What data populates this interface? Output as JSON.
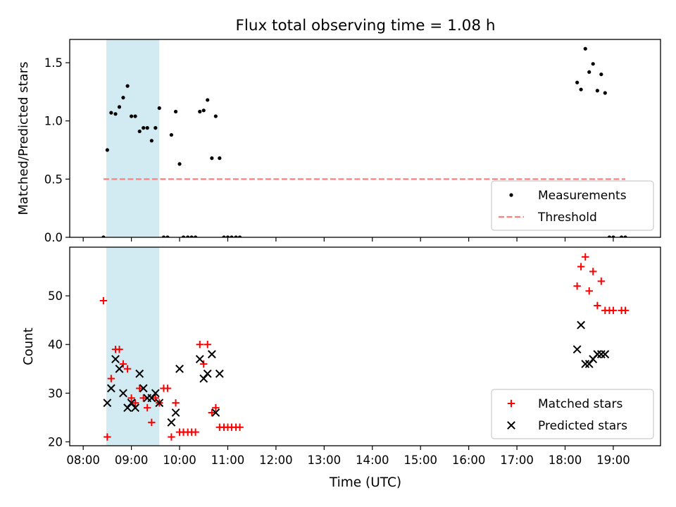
{
  "chart_data": {
    "title": "Flux total observing time = 1.08 h",
    "xlabel": "Time (UTC)",
    "x_ticks": [
      "08:00",
      "09:00",
      "10:00",
      "11:00",
      "12:00",
      "13:00",
      "14:00",
      "15:00",
      "16:00",
      "17:00",
      "18:00",
      "19:00"
    ],
    "x_range_hours": [
      7.72,
      19.98
    ],
    "shaded_interval_hours": [
      8.48,
      9.58
    ],
    "shade_color": "#add8e6",
    "panels": [
      {
        "type": "scatter",
        "ylabel": "Matched/Predicted stars",
        "ylim": [
          0,
          1.7
        ],
        "y_ticks": [
          "0.0",
          "0.5",
          "1.0",
          "1.5"
        ],
        "y_tick_values": [
          0,
          0.5,
          1.0,
          1.5
        ],
        "legend_position": "lower right",
        "threshold": {
          "name": "Threshold",
          "value": 0.5,
          "x_start": 8.42,
          "x_end": 19.25,
          "color": "#ff7f7f",
          "style": "dashed"
        },
        "series": [
          {
            "name": "Measurements",
            "marker": "dot",
            "color": "#000000",
            "points": [
              [
                8.42,
                0.0
              ],
              [
                8.5,
                0.75
              ],
              [
                8.58,
                1.07
              ],
              [
                8.67,
                1.06
              ],
              [
                8.75,
                1.12
              ],
              [
                8.83,
                1.2
              ],
              [
                8.92,
                1.3
              ],
              [
                9.0,
                1.04
              ],
              [
                9.08,
                1.04
              ],
              [
                9.17,
                0.91
              ],
              [
                9.25,
                0.94
              ],
              [
                9.33,
                0.94
              ],
              [
                9.42,
                0.83
              ],
              [
                9.5,
                0.94
              ],
              [
                9.58,
                1.11
              ],
              [
                9.67,
                0.0
              ],
              [
                9.75,
                0.0
              ],
              [
                9.83,
                0.88
              ],
              [
                9.92,
                1.08
              ],
              [
                10.0,
                0.63
              ],
              [
                10.08,
                0.0
              ],
              [
                10.17,
                0.0
              ],
              [
                10.25,
                0.0
              ],
              [
                10.33,
                0.0
              ],
              [
                10.42,
                1.08
              ],
              [
                10.5,
                1.09
              ],
              [
                10.58,
                1.18
              ],
              [
                10.67,
                0.68
              ],
              [
                10.75,
                1.04
              ],
              [
                10.83,
                0.68
              ],
              [
                10.92,
                0.0
              ],
              [
                11.0,
                0.0
              ],
              [
                11.08,
                0.0
              ],
              [
                11.17,
                0.0
              ],
              [
                11.25,
                0.0
              ],
              [
                18.25,
                1.33
              ],
              [
                18.33,
                1.27
              ],
              [
                18.42,
                1.62
              ],
              [
                18.5,
                1.42
              ],
              [
                18.58,
                1.49
              ],
              [
                18.67,
                1.26
              ],
              [
                18.75,
                1.4
              ],
              [
                18.83,
                1.24
              ],
              [
                18.92,
                0.0
              ],
              [
                19.0,
                0.0
              ],
              [
                19.17,
                0.0
              ],
              [
                19.25,
                0.0
              ]
            ]
          }
        ],
        "legend": [
          "Measurements",
          "Threshold"
        ]
      },
      {
        "type": "scatter",
        "ylabel": "Count",
        "ylim": [
          19.2,
          60
        ],
        "y_ticks": [
          "20",
          "30",
          "40",
          "50"
        ],
        "y_tick_values": [
          20,
          30,
          40,
          50
        ],
        "legend_position": "lower right",
        "series": [
          {
            "name": "Matched stars",
            "marker": "plus",
            "color": "#ff0000",
            "points": [
              [
                8.42,
                49
              ],
              [
                8.5,
                21
              ],
              [
                8.58,
                33
              ],
              [
                8.67,
                39
              ],
              [
                8.75,
                39
              ],
              [
                8.83,
                36
              ],
              [
                8.92,
                35
              ],
              [
                9.0,
                29
              ],
              [
                9.08,
                28
              ],
              [
                9.17,
                31
              ],
              [
                9.25,
                29
              ],
              [
                9.33,
                27
              ],
              [
                9.42,
                24
              ],
              [
                9.5,
                29
              ],
              [
                9.58,
                28
              ],
              [
                9.67,
                31
              ],
              [
                9.75,
                31
              ],
              [
                9.83,
                21
              ],
              [
                9.92,
                28
              ],
              [
                10.0,
                22
              ],
              [
                10.08,
                22
              ],
              [
                10.17,
                22
              ],
              [
                10.25,
                22
              ],
              [
                10.33,
                22
              ],
              [
                10.42,
                40
              ],
              [
                10.5,
                36
              ],
              [
                10.58,
                40
              ],
              [
                10.67,
                26
              ],
              [
                10.75,
                27
              ],
              [
                10.83,
                23
              ],
              [
                10.92,
                23
              ],
              [
                11.0,
                23
              ],
              [
                11.08,
                23
              ],
              [
                11.17,
                23
              ],
              [
                11.25,
                23
              ],
              [
                18.25,
                52
              ],
              [
                18.33,
                56
              ],
              [
                18.42,
                58
              ],
              [
                18.5,
                51
              ],
              [
                18.58,
                55
              ],
              [
                18.67,
                48
              ],
              [
                18.75,
                53
              ],
              [
                18.83,
                47
              ],
              [
                18.92,
                47
              ],
              [
                19.0,
                47
              ],
              [
                19.17,
                47
              ],
              [
                19.25,
                47
              ]
            ]
          },
          {
            "name": "Predicted stars",
            "marker": "x",
            "color": "#000000",
            "points": [
              [
                8.5,
                28
              ],
              [
                8.58,
                31
              ],
              [
                8.67,
                37
              ],
              [
                8.75,
                35
              ],
              [
                8.83,
                30
              ],
              [
                8.92,
                27
              ],
              [
                9.0,
                28
              ],
              [
                9.08,
                27
              ],
              [
                9.17,
                34
              ],
              [
                9.25,
                31
              ],
              [
                9.33,
                29
              ],
              [
                9.42,
                29
              ],
              [
                9.5,
                30
              ],
              [
                9.58,
                28
              ],
              [
                9.83,
                24
              ],
              [
                9.92,
                26
              ],
              [
                10.0,
                35
              ],
              [
                10.42,
                37
              ],
              [
                10.5,
                33
              ],
              [
                10.58,
                34
              ],
              [
                10.67,
                38
              ],
              [
                10.75,
                26
              ],
              [
                10.83,
                34
              ],
              [
                18.25,
                39
              ],
              [
                18.33,
                44
              ],
              [
                18.42,
                36
              ],
              [
                18.5,
                36
              ],
              [
                18.58,
                37
              ],
              [
                18.67,
                38
              ],
              [
                18.75,
                38
              ],
              [
                18.83,
                38
              ]
            ]
          }
        ],
        "legend": [
          "Matched stars",
          "Predicted stars"
        ]
      }
    ]
  }
}
